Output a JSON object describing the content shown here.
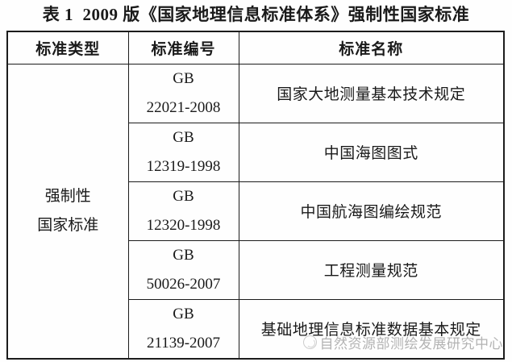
{
  "title": "表 1  2009 版《国家地理信息标准体系》强制性国家标准",
  "table": {
    "headers": [
      "标准类型",
      "标准编号",
      "标准名称"
    ],
    "merged_type": "强制性\n国家标准",
    "rows": [
      {
        "code": "GB\n22021-2008",
        "name": "国家大地测量基本技术规定"
      },
      {
        "code": "GB\n12319-1998",
        "name": "中国海图图式"
      },
      {
        "code": "GB\n12320-1998",
        "name": "中国航海图编绘规范"
      },
      {
        "code": "GB\n50026-2007",
        "name": "工程测量规范"
      },
      {
        "code": "GB\n21139-2007",
        "name": "基础地理信息标准数据基本规定"
      }
    ]
  },
  "watermark": {
    "text": "自然资源部测绘发展研究中心"
  },
  "colors": {
    "text": "#1a1a1a",
    "border": "#1c1c1c",
    "watermark": "#b3b3b3",
    "background": "#fefefe"
  }
}
